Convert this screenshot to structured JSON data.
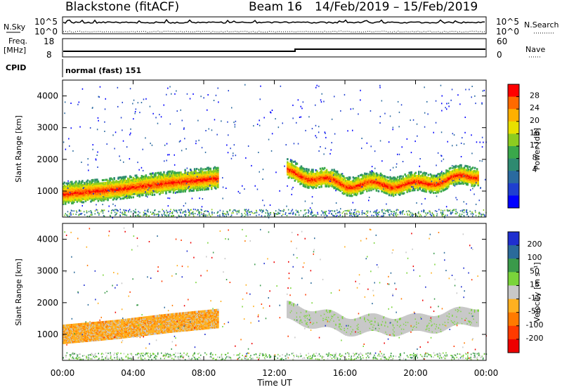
{
  "header": {
    "station": "Blackstone (fitACF)",
    "beam": "Beam 16",
    "dates": "14/Feb/2019 – 15/Feb/2019"
  },
  "summary_panels": {
    "nsky_label": "N.Sky",
    "nsearch_label": "N.Search",
    "noise_tick_top": "10^5",
    "noise_tick_bottom": "10^0",
    "noise_tick_top_right": "10^5",
    "noise_tick_bottom_right": "10^0",
    "freq_label_line1": "Freq.",
    "freq_label_line2": "[MHz]",
    "freq_tick_top": "18",
    "freq_tick_bottom": "8",
    "nave_label": "Nave",
    "nave_tick_top": "60",
    "nave_tick_bottom": "0",
    "cpid_label": "CPID",
    "cpid_text": "normal (fast) 151"
  },
  "colorbars": {
    "power": {
      "label": "Power [dB]",
      "ticks": [
        "28",
        "24",
        "20",
        "16",
        "12",
        "8",
        "4"
      ],
      "colors": [
        "#ff0000",
        "#ff6a00",
        "#ffb000",
        "#e8e000",
        "#8ccc20",
        "#3aa84a",
        "#2e8a70",
        "#2a6aa0",
        "#1f3fd0",
        "#0000ff"
      ]
    },
    "velocity": {
      "label": "Velocity [m s⁻¹]",
      "ticks": [
        "200",
        "100",
        "50",
        "15",
        "-15",
        "-50",
        "-100",
        "-200"
      ],
      "colors": [
        "#1f2fcf",
        "#2a6a9a",
        "#3a9a4a",
        "#7ad43a",
        "#c8c8c8",
        "#ffb020",
        "#ff7a00",
        "#ff3a00",
        "#ee0000"
      ]
    }
  },
  "axes": {
    "ylabel": "Slant Range [km]",
    "xlabel": "Time UT",
    "yticks": [
      "4000",
      "3000",
      "2000",
      "1000"
    ],
    "xticks": [
      "00:00",
      "04:00",
      "08:00",
      "12:00",
      "16:00",
      "20:00",
      "00:00"
    ]
  },
  "chart_data": [
    {
      "type": "heatmap",
      "title": "Power",
      "x_range_hours": [
        0,
        24
      ],
      "ylim": [
        180,
        4500
      ],
      "ylabel": "Slant Range [km]",
      "colorbar_label": "Power [dB]",
      "colorbar_ticks": [
        4,
        8,
        12,
        16,
        20,
        24,
        28
      ],
      "bands": [
        {
          "t": [
            0,
            3,
            6,
            8.8
          ],
          "range_center": [
            900,
            1050,
            1250,
            1400
          ],
          "halfwidth": 200,
          "power_peak": 28
        },
        {
          "t": [
            12.7,
            16,
            20,
            23.5
          ],
          "range_center": [
            1600,
            1200,
            1200,
            1500
          ],
          "halfwidth": 170,
          "power_peak": 26
        }
      ]
    },
    {
      "type": "heatmap",
      "title": "Velocity",
      "x_range_hours": [
        0,
        24
      ],
      "ylim": [
        180,
        4500
      ],
      "ylabel": "Slant Range [km]",
      "colorbar_label": "Velocity [m s⁻¹]",
      "colorbar_ticks": [
        -200,
        -100,
        -50,
        -15,
        15,
        50,
        100,
        200
      ],
      "bands": [
        {
          "t": [
            0,
            3,
            6,
            8.8
          ],
          "range_center": [
            1000,
            1150,
            1350,
            1500
          ],
          "halfwidth": 280,
          "velocity": -50
        },
        {
          "t": [
            12.7,
            16,
            20,
            23.5
          ],
          "range_center": [
            1700,
            1300,
            1300,
            1600
          ],
          "halfwidth": 250,
          "velocity": 0
        }
      ]
    }
  ]
}
